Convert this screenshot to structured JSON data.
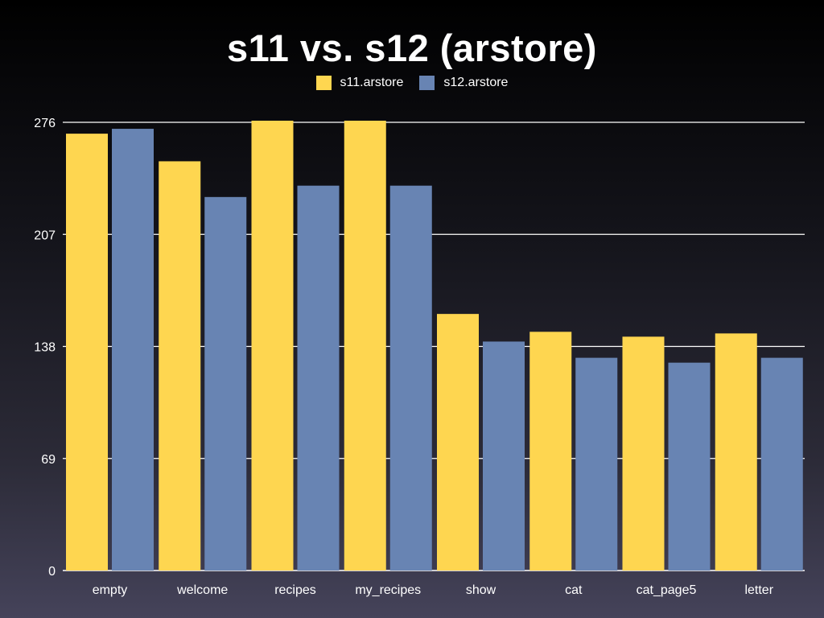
{
  "chart_data": {
    "type": "bar",
    "title": "s11 vs. s12 (arstore)",
    "xlabel": "",
    "ylabel": "",
    "categories": [
      "empty",
      "welcome",
      "recipes",
      "my_recipes",
      "show",
      "cat",
      "cat_page5",
      "letter"
    ],
    "series": [
      {
        "name": "s11.arstore",
        "color": "#fed650",
        "values": [
          269,
          252,
          277,
          277,
          158,
          147,
          144,
          146
        ]
      },
      {
        "name": "s12.arstore",
        "color": "#6884b3",
        "values": [
          272,
          230,
          237,
          237,
          141,
          131,
          128,
          131
        ]
      }
    ],
    "yticks": [
      0,
      69,
      138,
      207,
      276
    ],
    "ylim": [
      0,
      276
    ],
    "grid": true,
    "legend_position": "top-center"
  }
}
